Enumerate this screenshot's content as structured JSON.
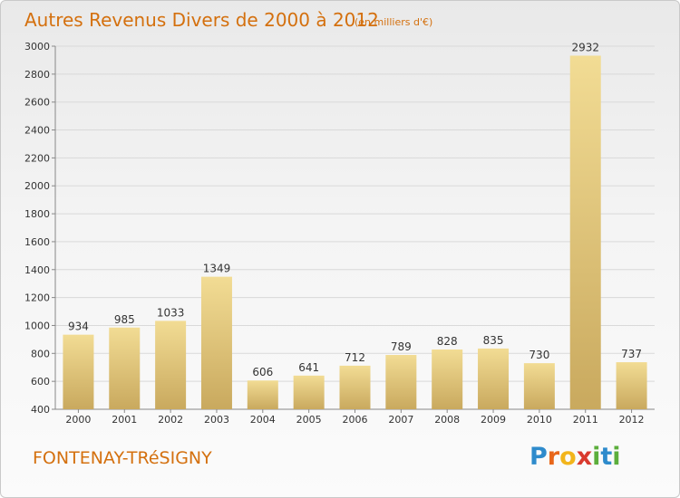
{
  "header": {
    "title": "Autres Revenus Divers de 2000 à 2012",
    "unit": "(en milliers d'€)"
  },
  "footer": {
    "commune": "FONTENAY-TRéSIGNY",
    "brand_letters": [
      "P",
      "r",
      "o",
      "x",
      "i",
      "t",
      "i"
    ]
  },
  "colors": {
    "title": "#d4700e",
    "bar_light": "#f2dc94",
    "bar_dark": "#c9a95e",
    "grid": "#d9d9d9",
    "axis_text": "#333333"
  },
  "chart_data": {
    "type": "bar",
    "title": "Autres Revenus Divers de 2000 à 2012",
    "subtitle": "(en milliers d'€)",
    "categories": [
      "2000",
      "2001",
      "2002",
      "2003",
      "2004",
      "2005",
      "2006",
      "2007",
      "2008",
      "2009",
      "2010",
      "2011",
      "2012"
    ],
    "values": [
      934,
      985,
      1033,
      1349,
      606,
      641,
      712,
      789,
      828,
      835,
      730,
      2932,
      737
    ],
    "ylim": [
      400,
      3000
    ],
    "yticks": [
      400,
      600,
      800,
      1000,
      1200,
      1400,
      1600,
      1800,
      2000,
      2200,
      2400,
      2600,
      2800,
      3000
    ],
    "grid": true,
    "legend": "none"
  }
}
